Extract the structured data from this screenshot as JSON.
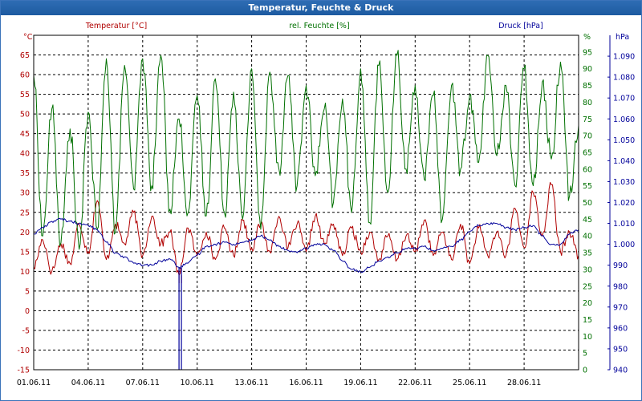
{
  "window": {
    "title": "Temperatur, Feuchte & Druck"
  },
  "chart_data": {
    "type": "line",
    "title": "Temperatur, Feuchte & Druck",
    "grid": true,
    "colors": {
      "temperature": "#b00000",
      "humidity": "#007000",
      "pressure": "#00009a",
      "grid": "#000000",
      "frame": "#000000"
    },
    "x_axis": {
      "ticks": [
        "01.06.11",
        "04.06.11",
        "07.06.11",
        "10.06.11",
        "13.06.11",
        "16.06.11",
        "19.06.11",
        "22.06.11",
        "25.06.11",
        "28.06.11"
      ],
      "range": [
        "01.06.11 00:00",
        "01.07.11 00:00"
      ]
    },
    "axes": {
      "temperature": {
        "label": "Temperatur [°C]",
        "unit": "°C",
        "ylim": [
          -15,
          70
        ],
        "ticks": [
          65,
          60,
          55,
          50,
          45,
          40,
          35,
          30,
          25,
          20,
          15,
          10,
          5,
          0,
          -5,
          -10,
          -15
        ]
      },
      "humidity": {
        "label": "rel. Feuchte [%]",
        "unit": "%",
        "ylim": [
          0,
          100
        ],
        "ticks": [
          95,
          90,
          85,
          80,
          75,
          70,
          65,
          60,
          55,
          50,
          45,
          40,
          35,
          30,
          25,
          20,
          15,
          10,
          5,
          0
        ]
      },
      "pressure": {
        "label": "Druck [hPa]",
        "unit": "hPa",
        "ylim": [
          940,
          1100
        ],
        "ticks": [
          "1.090",
          "1.080",
          "1.070",
          "1.060",
          "1.050",
          "1.040",
          "1.030",
          "1.020",
          "1.010",
          "1.000",
          "990",
          "980",
          "970",
          "960",
          "950",
          "940"
        ]
      }
    },
    "series": [
      {
        "name": "Temperatur [°C]",
        "axis": "temperature",
        "x": [
          "01.06.11",
          "01.06.11 12:00",
          "02.06.11",
          "02.06.11 12:00",
          "03.06.11",
          "03.06.11 12:00",
          "04.06.11",
          "04.06.11 12:00",
          "05.06.11",
          "05.06.11 12:00",
          "06.06.11",
          "06.06.11 12:00",
          "07.06.11",
          "07.06.11 12:00",
          "08.06.11",
          "08.06.11 12:00",
          "09.06.11",
          "09.06.11 12:00",
          "10.06.11",
          "10.06.11 12:00",
          "11.06.11",
          "11.06.11 12:00",
          "12.06.11",
          "12.06.11 12:00",
          "13.06.11",
          "13.06.11 12:00",
          "14.06.11",
          "14.06.11 12:00",
          "15.06.11",
          "15.06.11 12:00",
          "16.06.11",
          "16.06.11 12:00",
          "17.06.11",
          "17.06.11 12:00",
          "18.06.11",
          "18.06.11 12:00",
          "19.06.11",
          "19.06.11 12:00",
          "20.06.11",
          "20.06.11 12:00",
          "21.06.11",
          "21.06.11 12:00",
          "22.06.11",
          "22.06.11 12:00",
          "23.06.11",
          "23.06.11 12:00",
          "24.06.11",
          "24.06.11 12:00",
          "25.06.11",
          "25.06.11 12:00",
          "26.06.11",
          "26.06.11 12:00",
          "27.06.11",
          "27.06.11 12:00",
          "28.06.11",
          "28.06.11 12:00",
          "29.06.11",
          "29.06.11 12:00",
          "30.06.11",
          "30.06.11 12:00",
          "01.07.11"
        ],
        "values": [
          11,
          18,
          10,
          17,
          12,
          22,
          15,
          28,
          13,
          22,
          17,
          25,
          14,
          24,
          17,
          20,
          9,
          21,
          14,
          20,
          13,
          21,
          14,
          23,
          16,
          22,
          15,
          24,
          16,
          22,
          15,
          24,
          17,
          22,
          14,
          21,
          15,
          20,
          13,
          19,
          13,
          19,
          15,
          23,
          14,
          20,
          13,
          22,
          12,
          21,
          14,
          20,
          14,
          26,
          16,
          30,
          19,
          32,
          15,
          20,
          14
        ]
      },
      {
        "name": "rel. Feuchte [%]",
        "axis": "humidity",
        "x": [
          "01.06.11",
          "01.06.11 12:00",
          "02.06.11",
          "02.06.11 12:00",
          "03.06.11",
          "03.06.11 12:00",
          "04.06.11",
          "04.06.11 12:00",
          "05.06.11",
          "05.06.11 12:00",
          "06.06.11",
          "06.06.11 12:00",
          "07.06.11",
          "07.06.11 12:00",
          "08.06.11",
          "08.06.11 12:00",
          "09.06.11",
          "09.06.11 12:00",
          "10.06.11",
          "10.06.11 12:00",
          "11.06.11",
          "11.06.11 12:00",
          "12.06.11",
          "12.06.11 12:00",
          "13.06.11",
          "13.06.11 12:00",
          "14.06.11",
          "14.06.11 12:00",
          "15.06.11",
          "15.06.11 12:00",
          "16.06.11",
          "16.06.11 12:00",
          "17.06.11",
          "17.06.11 12:00",
          "18.06.11",
          "18.06.11 12:00",
          "19.06.11",
          "19.06.11 12:00",
          "20.06.11",
          "20.06.11 12:00",
          "21.06.11",
          "21.06.11 12:00",
          "22.06.11",
          "22.06.11 12:00",
          "23.06.11",
          "23.06.11 12:00",
          "24.06.11",
          "24.06.11 12:00",
          "25.06.11",
          "25.06.11 12:00",
          "26.06.11",
          "26.06.11 12:00",
          "27.06.11",
          "27.06.11 12:00",
          "28.06.11",
          "28.06.11 12:00",
          "29.06.11",
          "29.06.11 12:00",
          "30.06.11",
          "30.06.11 12:00",
          "01.07.11"
        ],
        "values": [
          88,
          40,
          78,
          38,
          72,
          36,
          77,
          42,
          93,
          41,
          91,
          54,
          93,
          55,
          94,
          48,
          75,
          47,
          82,
          46,
          87,
          47,
          83,
          45,
          90,
          42,
          89,
          60,
          88,
          55,
          85,
          58,
          78,
          50,
          81,
          47,
          90,
          44,
          91,
          53,
          94,
          60,
          85,
          57,
          82,
          45,
          85,
          60,
          82,
          62,
          94,
          64,
          85,
          55,
          90,
          55,
          86,
          63,
          92,
          52,
          73
        ]
      },
      {
        "name": "Druck [hPa]",
        "axis": "pressure",
        "x": [
          "01.06.11",
          "01.06.11 12:00",
          "02.06.11",
          "02.06.11 12:00",
          "03.06.11",
          "03.06.11 12:00",
          "04.06.11",
          "04.06.11 12:00",
          "05.06.11",
          "05.06.11 12:00",
          "06.06.11",
          "06.06.11 12:00",
          "07.06.11",
          "07.06.11 12:00",
          "08.06.11",
          "08.06.11 12:00",
          "09.06.11",
          "09.06.11 12:00",
          "10.06.11",
          "10.06.11 12:00",
          "11.06.11",
          "11.06.11 12:00",
          "12.06.11",
          "12.06.11 12:00",
          "13.06.11",
          "13.06.11 12:00",
          "14.06.11",
          "14.06.11 12:00",
          "15.06.11",
          "15.06.11 12:00",
          "16.06.11",
          "16.06.11 12:00",
          "17.06.11",
          "17.06.11 12:00",
          "18.06.11",
          "18.06.11 12:00",
          "19.06.11",
          "19.06.11 12:00",
          "20.06.11",
          "20.06.11 12:00",
          "21.06.11",
          "21.06.11 12:00",
          "22.06.11",
          "22.06.11 12:00",
          "23.06.11",
          "23.06.11 12:00",
          "24.06.11",
          "24.06.11 12:00",
          "25.06.11",
          "25.06.11 12:00",
          "26.06.11",
          "26.06.11 12:00",
          "27.06.11",
          "27.06.11 12:00",
          "28.06.11",
          "28.06.11 12:00",
          "29.06.11",
          "29.06.11 12:00",
          "30.06.11",
          "30.06.11 12:00",
          "01.07.11"
        ],
        "values": [
          1005,
          1008,
          1011,
          1012,
          1011,
          1010,
          1009,
          1007,
          1001,
          996,
          994,
          991,
          990,
          990,
          992,
          993,
          989,
          991,
          995,
          999,
          1000,
          1001,
          1000,
          1001,
          1002,
          1004,
          1002,
          999,
          997,
          996,
          998,
          1000,
          1000,
          997,
          992,
          988,
          987,
          989,
          992,
          994,
          996,
          998,
          998,
          999,
          997,
          998,
          999,
          1002,
          1006,
          1009,
          1010,
          1010,
          1008,
          1007,
          1008,
          1009,
          1004,
          1000,
          1000,
          1005,
          1007
        ]
      }
    ],
    "annotations": [
      {
        "type": "spike",
        "series": "Temperatur [°C]",
        "x": "09.06.11",
        "value": 7
      },
      {
        "type": "spike",
        "series": "Druck [hPa]",
        "x": "09.06.11",
        "value": 940
      }
    ]
  }
}
